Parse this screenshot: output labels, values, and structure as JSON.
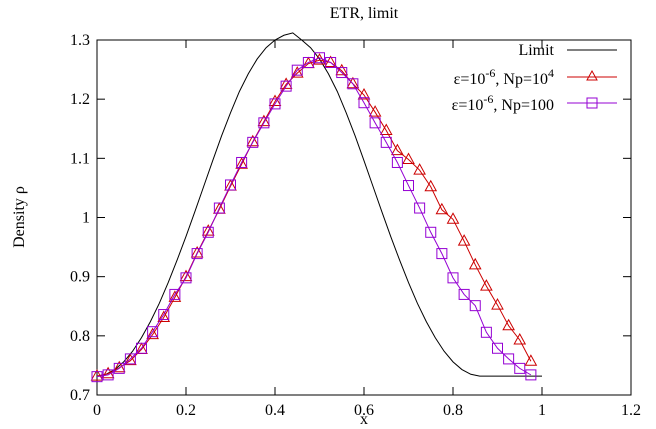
{
  "chart_data": {
    "type": "line",
    "title": "ETR, limit",
    "xlabel": "x",
    "ylabel": "Density ρ",
    "xlim": [
      0,
      1.2
    ],
    "ylim": [
      0.7,
      1.3
    ],
    "xticks": [
      "0",
      "0.2",
      "0.4",
      "0.6",
      "0.8",
      "1",
      "1.2"
    ],
    "yticks": [
      "0.7",
      "0.8",
      "0.9",
      "1",
      "1.1",
      "1.2",
      "1.3"
    ],
    "grid": false,
    "legend_position": "top-right",
    "legend": [
      {
        "label": "Limit",
        "marker": "none",
        "color": "#000000"
      },
      {
        "label_main": "ε=10",
        "label_sup1": "-6",
        "label_mid": ", Np=10",
        "label_sup2": "4",
        "marker": "triangle",
        "color": "#cc0000"
      },
      {
        "label_main": "ε=10",
        "label_sup1": "-6",
        "label_mid": ", Np=100",
        "label_sup2": "",
        "marker": "square",
        "color": "#9400d3"
      }
    ],
    "series": [
      {
        "name": "Limit",
        "style": "line",
        "color": "#000000",
        "x": [
          0.0,
          0.02,
          0.04,
          0.06,
          0.08,
          0.1,
          0.12,
          0.14,
          0.16,
          0.18,
          0.2,
          0.22,
          0.24,
          0.26,
          0.28,
          0.3,
          0.32,
          0.34,
          0.36,
          0.38,
          0.4,
          0.42,
          0.44,
          0.46,
          0.48,
          0.5,
          0.52,
          0.54,
          0.56,
          0.58,
          0.6,
          0.62,
          0.64,
          0.66,
          0.68,
          0.7,
          0.72,
          0.74,
          0.76,
          0.78,
          0.8,
          0.82,
          0.84,
          0.86,
          0.88,
          0.9,
          0.92,
          0.94,
          0.96,
          0.98,
          1.0
        ],
        "y": [
          0.732,
          0.735,
          0.743,
          0.756,
          0.774,
          0.797,
          0.824,
          0.855,
          0.89,
          0.928,
          0.968,
          1.01,
          1.053,
          1.096,
          1.138,
          1.177,
          1.213,
          1.243,
          1.268,
          1.287,
          1.3,
          1.308,
          1.312,
          1.3,
          1.287,
          1.268,
          1.243,
          1.213,
          1.177,
          1.138,
          1.096,
          1.053,
          1.01,
          0.968,
          0.928,
          0.89,
          0.855,
          0.824,
          0.797,
          0.774,
          0.756,
          0.743,
          0.735,
          0.732,
          0.732,
          0.732,
          0.732,
          0.732,
          0.732,
          0.732,
          0.732
        ]
      },
      {
        "name": "ε=10-6, Np=104",
        "style": "triangle",
        "color": "#cc0000",
        "x": [
          0.0,
          0.025,
          0.05,
          0.075,
          0.1,
          0.125,
          0.15,
          0.175,
          0.2,
          0.225,
          0.25,
          0.275,
          0.3,
          0.325,
          0.35,
          0.375,
          0.4,
          0.425,
          0.45,
          0.475,
          0.5,
          0.525,
          0.55,
          0.575,
          0.6,
          0.625,
          0.65,
          0.675,
          0.7,
          0.725,
          0.75,
          0.775,
          0.8,
          0.825,
          0.85,
          0.875,
          0.9,
          0.925,
          0.95,
          0.975
        ],
        "y": [
          0.732,
          0.736,
          0.746,
          0.758,
          0.777,
          0.802,
          0.831,
          0.865,
          0.9,
          0.94,
          0.977,
          1.014,
          1.053,
          1.09,
          1.128,
          1.162,
          1.196,
          1.225,
          1.244,
          1.26,
          1.266,
          1.262,
          1.248,
          1.226,
          1.207,
          1.178,
          1.147,
          1.113,
          1.098,
          1.08,
          1.052,
          1.013,
          0.997,
          0.96,
          0.92,
          0.884,
          0.852,
          0.817,
          0.793,
          0.757
        ]
      },
      {
        "name": "ε=10-6, Np=100",
        "style": "square",
        "color": "#9400d3",
        "x": [
          0.0,
          0.025,
          0.05,
          0.075,
          0.1,
          0.125,
          0.15,
          0.175,
          0.2,
          0.225,
          0.25,
          0.275,
          0.3,
          0.325,
          0.35,
          0.375,
          0.4,
          0.425,
          0.45,
          0.475,
          0.5,
          0.525,
          0.55,
          0.575,
          0.6,
          0.625,
          0.65,
          0.675,
          0.7,
          0.725,
          0.75,
          0.775,
          0.8,
          0.825,
          0.85,
          0.875,
          0.9,
          0.925,
          0.95,
          0.975
        ],
        "y": [
          0.731,
          0.734,
          0.745,
          0.761,
          0.779,
          0.807,
          0.836,
          0.87,
          0.898,
          0.939,
          0.975,
          1.016,
          1.055,
          1.093,
          1.127,
          1.16,
          1.192,
          1.222,
          1.249,
          1.262,
          1.27,
          1.262,
          1.245,
          1.226,
          1.194,
          1.16,
          1.127,
          1.093,
          1.054,
          1.016,
          0.975,
          0.939,
          0.898,
          0.87,
          0.851,
          0.806,
          0.779,
          0.761,
          0.745,
          0.734
        ]
      }
    ]
  }
}
